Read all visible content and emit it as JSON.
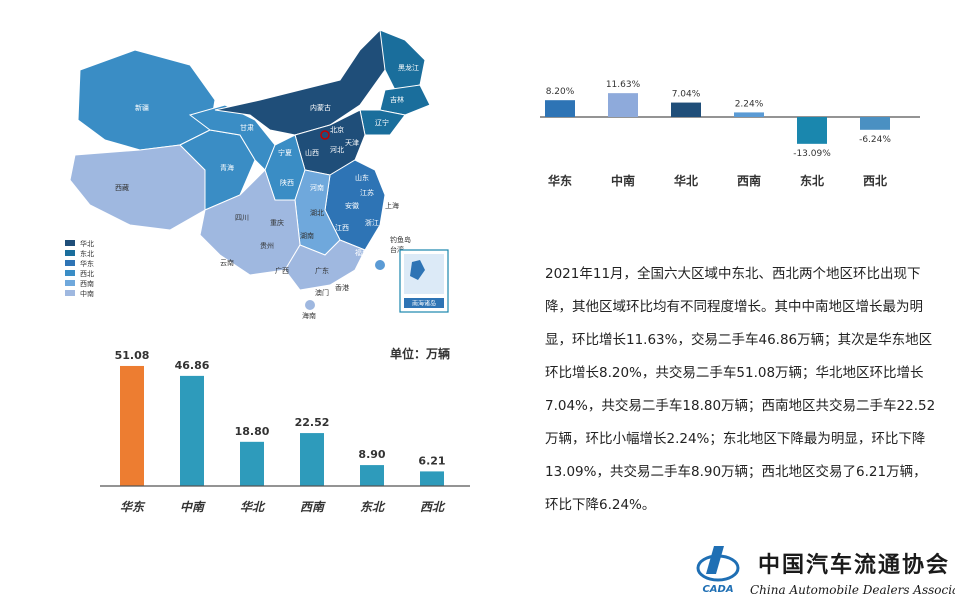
{
  "colors": {
    "bar_highlight": "#ED7D31",
    "bar_default": "#2E9BBB",
    "growth_huadong": "#2E74B5",
    "growth_zhongnan": "#8EAADB",
    "growth_huabei": "#1F4E79",
    "growth_xinan": "#5B9BD5",
    "growth_dongbei": "#1A87AE",
    "growth_xibei": "#4A90C2",
    "map_legend": [
      "#1F4E79",
      "#1A6E9C",
      "#2E74B5",
      "#3A8DC5",
      "#6FA8DC",
      "#9FB8E0"
    ]
  },
  "map": {
    "legend": [
      "华北",
      "东北",
      "华东",
      "西北",
      "西南",
      "中南"
    ],
    "province_labels": [
      "新疆",
      "西藏",
      "青海",
      "甘肃",
      "内蒙古",
      "黑龙江",
      "吉林",
      "辽宁",
      "北京",
      "天津",
      "河北",
      "山西",
      "陕西",
      "宁夏",
      "山东",
      "河南",
      "四川",
      "湖北",
      "安徽",
      "江苏",
      "上海",
      "重庆",
      "浙江",
      "贵州",
      "湖南",
      "江西",
      "福建",
      "云南",
      "广西",
      "广东",
      "台湾",
      "香港",
      "澳门",
      "海南",
      "钓鱼岛"
    ],
    "inset_label": "南海诸岛"
  },
  "growth_chart": {
    "type": "bar",
    "categories": [
      "华东",
      "中南",
      "华北",
      "西南",
      "东北",
      "西北"
    ],
    "values": [
      8.2,
      11.63,
      7.04,
      2.24,
      -13.09,
      -6.24
    ],
    "data_labels": [
      "8.20%",
      "11.63%",
      "7.04%",
      "2.24%",
      "-13.09%",
      "-6.24%"
    ]
  },
  "volume_chart": {
    "type": "bar",
    "unit": "单位：万辆",
    "categories": [
      "华东",
      "中南",
      "华北",
      "西南",
      "东北",
      "西北"
    ],
    "values": [
      51.08,
      46.86,
      18.8,
      22.52,
      8.9,
      6.21
    ],
    "data_labels": [
      "51.08",
      "46.86",
      "18.80",
      "22.52",
      "8.90",
      "6.21"
    ]
  },
  "chart_data": [
    {
      "type": "bar",
      "categories": [
        "华东",
        "中南",
        "华北",
        "西南",
        "东北",
        "西北"
      ],
      "values": [
        8.2,
        11.63,
        7.04,
        2.24,
        -13.09,
        -6.24
      ]
    },
    {
      "type": "bar",
      "categories": [
        "华东",
        "中南",
        "华北",
        "西南",
        "东北",
        "西北"
      ],
      "values": [
        51.08,
        46.86,
        18.8,
        22.52,
        8.9,
        6.21
      ],
      "ylabel": "单位：万辆"
    }
  ],
  "summary": "2021年11月，全国六大区域中东北、西北两个地区环比出现下降，其他区域环比均有不同程度增长。其中中南地区增长最为明显，环比增长11.63%，交易二手车46.86万辆；其次是华东地区环比增长8.20%，共交易二手车51.08万辆；华北地区环比增长7.04%，共交易二手车18.80万辆；西南地区共交易二手车22.52万辆，环比小幅增长2.24%；东北地区下降最为明显，环比下降13.09%，共交易二手车8.90万辆；西北地区交易了6.21万辆，环比下降6.24%。",
  "logo": {
    "cn": "中国汽车流通协会",
    "en": "China Automobile Dealers Association",
    "abbr": "CADA"
  }
}
